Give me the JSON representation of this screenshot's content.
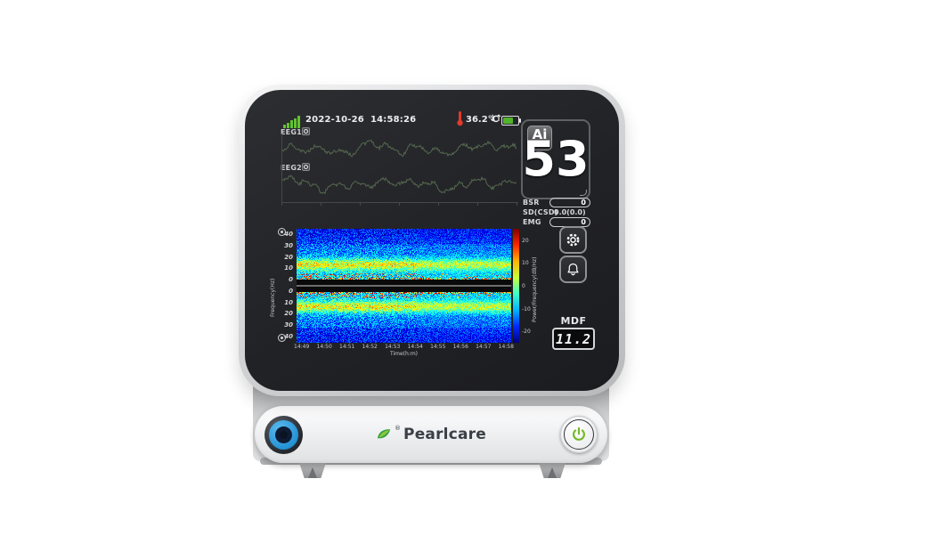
{
  "front_panel": {
    "brand": "Pearlcare",
    "registered_mark": "®"
  },
  "status_bar": {
    "date": "2022-10-26",
    "time": "14:58:26",
    "temperature": "36.2℃",
    "transfer_arrows": "↓↑",
    "battery_level_percent": 65,
    "colors": {
      "signal_bars": "#62c32e",
      "battery_fill": "#52b42a",
      "thermometer": "#e23a2c"
    }
  },
  "eeg": {
    "channels": [
      {
        "label": "EEG1"
      },
      {
        "label": "EEG2"
      }
    ]
  },
  "index_panel": {
    "logo": "Ai",
    "value": "53",
    "accent_green": "#6abf3a"
  },
  "metrics": {
    "bsr": {
      "label": "BSR",
      "value": "0"
    },
    "sd_csd": {
      "label": "SD(CSD)",
      "value": "0.0(0.0)"
    },
    "emg": {
      "label": "EMG",
      "value": "0"
    }
  },
  "mdf": {
    "label": "MDF",
    "value": "11.2"
  },
  "icons": {
    "signal": "signal-bars-icon",
    "thermometer": "thermometer-icon",
    "battery": "battery-icon",
    "settings": "gear-icon",
    "alarm": "bell-icon",
    "power": "power-icon",
    "brand": "leaf-icon",
    "electrode": "electrode-status-icon"
  },
  "chart_data": [
    {
      "type": "line",
      "series": [
        {
          "name": "EEG1"
        },
        {
          "name": "EEG2"
        }
      ],
      "color": "#55684e",
      "description": "two continuous dark-green EEG voltage traces on black background"
    },
    {
      "type": "heatmap",
      "xlabel": "Time(h:m)",
      "ylabel": "Frequency(Hz)",
      "xticks": [
        "14:49",
        "14:50",
        "14:51",
        "14:52",
        "14:53",
        "14:54",
        "14:55",
        "14:56",
        "14:57",
        "14:58"
      ],
      "yticks_top": [
        40,
        30,
        20,
        10,
        0
      ],
      "yticks_bottom": [
        0,
        10,
        20,
        30,
        40
      ],
      "freq_max_hz": 45,
      "colorbar": {
        "label": "Power/Frequency(dB/Hz)",
        "ticks": [
          20,
          10,
          0,
          -10,
          -20
        ],
        "db_range": [
          25,
          -25
        ],
        "stops": [
          "#800000",
          "#ff2600",
          "#ffb400",
          "#c8ff3c",
          "#3cffc8",
          "#00b4ff",
          "#0028ff",
          "#000080"
        ]
      },
      "features": {
        "mirrored_dual_channel": true,
        "high_power_band_hz": [
          10,
          16
        ],
        "red_speckle_band_hz": [
          0,
          5
        ],
        "background": "low-power blue speckle"
      }
    }
  ]
}
